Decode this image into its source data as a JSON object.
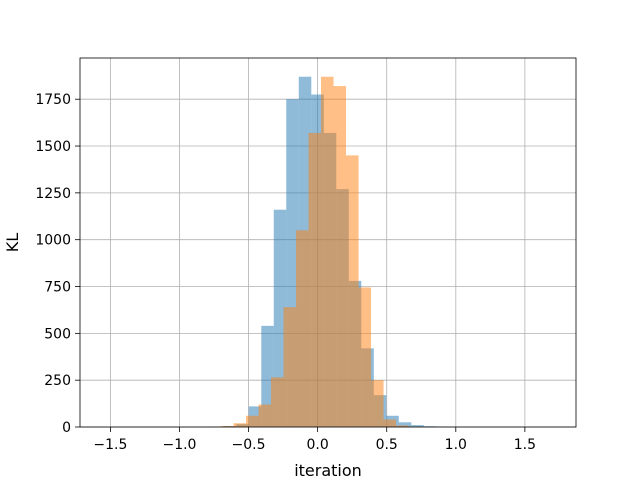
{
  "chart_data": {
    "type": "bar",
    "title": "",
    "xlabel": "iteration",
    "ylabel": "KL",
    "xlim": [
      -1.72,
      1.87
    ],
    "ylim": [
      0,
      1970
    ],
    "xticks": [
      -1.5,
      -1.0,
      -0.5,
      0.0,
      0.5,
      1.0,
      1.5
    ],
    "xtick_labels": [
      "−1.5",
      "−1.0",
      "−0.5",
      "0.0",
      "0.5",
      "1.0",
      "1.5"
    ],
    "yticks": [
      0,
      250,
      500,
      750,
      1000,
      1250,
      1500,
      1750
    ],
    "ytick_labels": [
      "0",
      "250",
      "500",
      "750",
      "1000",
      "1250",
      "1500",
      "1750"
    ],
    "grid": true,
    "legend": "none",
    "bin_width": 0.0905,
    "series": [
      {
        "color": "#1f77b4",
        "opacity": 0.5,
        "bin_start": -0.77,
        "counts": [
          2,
          5,
          15,
          110,
          540,
          1160,
          1750,
          1870,
          1775,
          1570,
          1270,
          780,
          420,
          170,
          60,
          25,
          10,
          4,
          2
        ]
      },
      {
        "color": "#ff7f0e",
        "opacity": 0.5,
        "bin_start": -0.79,
        "counts": [
          2,
          5,
          20,
          60,
          120,
          265,
          640,
          1050,
          1570,
          1870,
          1820,
          1450,
          745,
          250,
          40,
          8,
          2
        ]
      }
    ]
  }
}
